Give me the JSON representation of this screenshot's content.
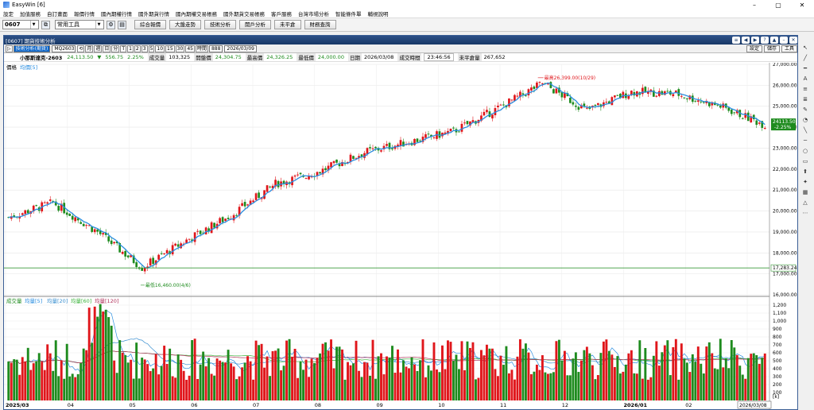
{
  "app": {
    "title": "EasyWin [6]",
    "window_controls": [
      "–",
      "▢",
      "✕"
    ]
  },
  "menu": [
    "設定",
    "加值服務",
    "自訂畫面",
    "報價行情",
    "國內期權行情",
    "國外期貨行情",
    "國內期權交易帳務",
    "國外期貨交易帳務",
    "客戶服務",
    "台灣市場分析",
    "智能條件單",
    "輔視說明"
  ],
  "toolbar": {
    "code": "0607",
    "tool_select": "常用工具",
    "buttons": [
      "綜合報價",
      "大盤走勢",
      "技術分析",
      "開戶分析",
      "未平倉",
      "財務查詢"
    ]
  },
  "chart_window": {
    "title": "[0607] 期貨技術分析",
    "controls": [
      "≡",
      "◀",
      "▶",
      "?",
      "▲",
      "–",
      "✕"
    ]
  },
  "chart_tools": {
    "mode": "技術分析(期貨)",
    "symbol": "MQ2603",
    "periods": [
      "月",
      "週",
      "日",
      "分",
      "T",
      "1",
      "2",
      "3",
      "5",
      "10",
      "15",
      "30",
      "45",
      "時間"
    ],
    "count": "888",
    "date": "2026/03/09",
    "right_buttons": [
      "設定",
      "儲存",
      "工具"
    ]
  },
  "quote": {
    "name": "小那斯達克-2603",
    "price": "24,113.50",
    "change_arrow": "▼",
    "change": "556.75",
    "pct": "2.25%",
    "volume_label": "成交量",
    "volume": "103,325",
    "open_label": "開盤價",
    "open": "24,304.75",
    "high_label": "最高價",
    "high": "24,326.25",
    "low_label": "最低價",
    "low": "24,000.00",
    "date_label": "日期",
    "date": "2026/03/08",
    "time_label": "成交時間",
    "time": "23:46:56",
    "oi_label": "未平倉量",
    "oi": "267,652"
  },
  "price_panel": {
    "legend_label": "價格",
    "legend_ma": "均價[5]",
    "high_annotation": "最高26,399.00(10/29)",
    "low_annotation": "最低16,460.00(4/6)",
    "current_price_tag": "24113.50",
    "current_pct_tag": "-2.25%",
    "hline_tag": "17,283.24",
    "y_ticks": [
      "27,000.00",
      "26,000.00",
      "25,000.00",
      "24,000.00",
      "23,000.00",
      "22,000.00",
      "21,000.00",
      "20,000.00",
      "19,000.00",
      "18,000.00",
      "17,000.00",
      "16,000.00"
    ]
  },
  "volume_panel": {
    "legend": [
      "成交量",
      "均量[5]",
      "均量[20]",
      "均量[60]",
      "均量[120]"
    ],
    "y_ticks": [
      "1,200",
      "1,100",
      "1,000",
      "900",
      "800",
      "700",
      "600",
      "500",
      "400",
      "300",
      "200",
      "100"
    ],
    "unit": "[k]"
  },
  "x_axis": {
    "labels": [
      "2025/03",
      "04",
      "05",
      "06",
      "07",
      "08",
      "09",
      "10",
      "11",
      "12",
      "2026/01",
      "02",
      "03"
    ],
    "date_tag": "2026/03/08"
  },
  "sidebar_icons": [
    "pointer-icon",
    "line-icon",
    "hline-icon",
    "text-icon",
    "multiline-icon",
    "multiline-icon",
    "pen-icon",
    "pie-icon",
    "diagonal-icon",
    "hline-icon",
    "circle-icon",
    "box-icon",
    "pointer-icon",
    "star-icon",
    "grid-icon",
    "triangle-icon",
    "more-icon"
  ],
  "sidebar_glyphs": [
    "↖",
    "╱",
    "━",
    "A",
    "≡",
    "≣",
    "✎",
    "◔",
    "╲",
    "─",
    "○",
    "▭",
    "⬆",
    "✦",
    "▦",
    "△",
    "⋯"
  ],
  "colors": {
    "up": "#e0161b",
    "down": "#1e8b1e",
    "ma5": "#2a8ee0",
    "ma20": "#3a8fd0",
    "ma60": "#3cb33c",
    "ma120": "#b0305a",
    "window_title": "#173867"
  },
  "chart_data": {
    "type": "candlestick",
    "price_unit": "index points",
    "ylim": [
      16000,
      27000
    ],
    "volume_ylim": [
      0,
      1200
    ],
    "anchors": [
      {
        "date": "2025/03",
        "close": 19700
      },
      {
        "date": "2025/03",
        "close": 20400
      },
      {
        "date": "2025/04",
        "close": 19000
      },
      {
        "date": "2025/04",
        "close": 17300
      },
      {
        "date": "2025/04",
        "close": 18600
      },
      {
        "date": "2025/05",
        "close": 19800
      },
      {
        "date": "2025/05",
        "close": 21300
      },
      {
        "date": "2025/06",
        "close": 21900
      },
      {
        "date": "2025/07",
        "close": 22800
      },
      {
        "date": "2025/08",
        "close": 23300
      },
      {
        "date": "2025/09",
        "close": 23800
      },
      {
        "date": "2025/10",
        "close": 24900
      },
      {
        "date": "2025/10",
        "close": 26100
      },
      {
        "date": "2025/11",
        "close": 24800
      },
      {
        "date": "2025/12",
        "close": 25700
      },
      {
        "date": "2026/01",
        "close": 25600
      },
      {
        "date": "2026/02",
        "close": 25000
      },
      {
        "date": "2026/03",
        "close": 24113.5
      }
    ],
    "high_point": {
      "date": "2025/10/29",
      "value": 26399
    },
    "low_point": {
      "date": "2025/04/06",
      "value": 16460
    },
    "last_close": 24113.5,
    "reference_line": 17283.24
  }
}
